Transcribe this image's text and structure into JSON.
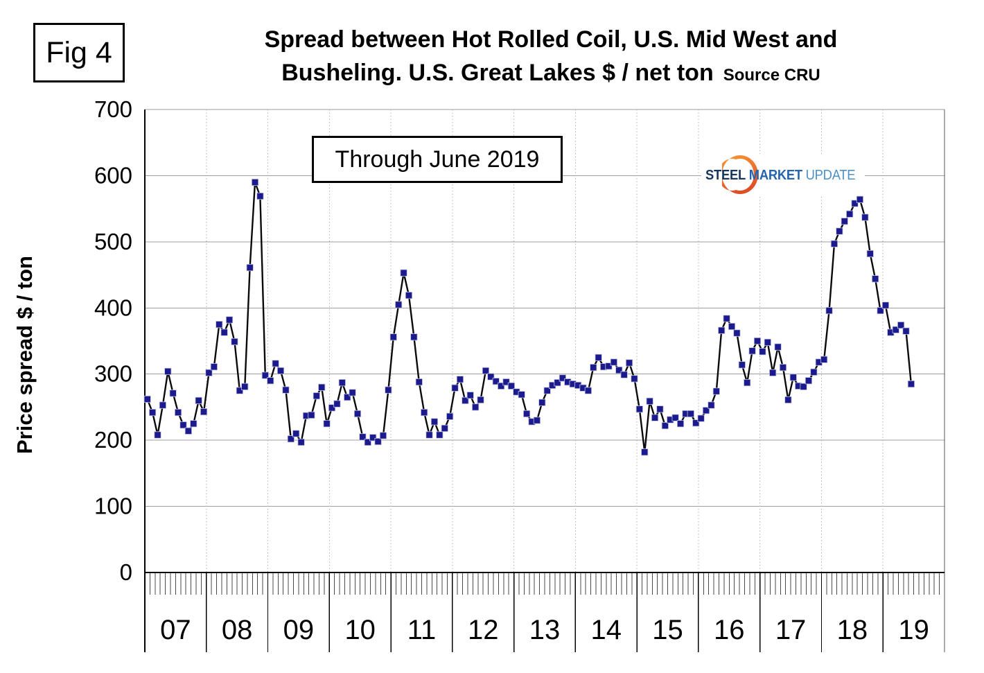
{
  "fig_label": "Fig 4",
  "title_line1": "Spread between Hot Rolled Coil, U.S. Mid West and",
  "title_line2": "Busheling. U.S. Great Lakes  $ / net ton",
  "source_label": "Source CRU",
  "annotation": "Through June 2019",
  "ylabel": "Price spread $ / ton",
  "logo": {
    "word1": "STEEL",
    "word2": "MARKET",
    "word3": "UPDATE",
    "crescent_color_top": "#f89b38",
    "crescent_color_bottom": "#e04e27"
  },
  "chart_data": {
    "type": "line",
    "title": "Spread between Hot Rolled Coil, U.S. Mid West and Busheling. U.S. Great Lakes $ / net ton",
    "source": "CRU",
    "xlabel": "",
    "ylabel": "Price spread $ / ton",
    "ylim": [
      0,
      700
    ],
    "ytick_interval": 100,
    "grid": "horizontal solid gray every 100, vertical dotted at year boundaries",
    "legend_position": "none",
    "x_unit": "monthly, Jan 2007 through Jun 2019",
    "line_color": "#0a0a0a",
    "marker": "square",
    "marker_color": "#1b1b8e",
    "series_name": "spread",
    "years": [
      {
        "label": "07",
        "year": 2007,
        "values": [
          262,
          242,
          208,
          253,
          304,
          271,
          242,
          223,
          214,
          225,
          260,
          243
        ]
      },
      {
        "label": "08",
        "year": 2008,
        "values": [
          302,
          311,
          375,
          363,
          382,
          349,
          275,
          281,
          461,
          590,
          569,
          298
        ]
      },
      {
        "label": "09",
        "year": 2009,
        "values": [
          290,
          316,
          305,
          276,
          202,
          210,
          197,
          237,
          238,
          267,
          280,
          225
        ]
      },
      {
        "label": "10",
        "year": 2010,
        "values": [
          249,
          255,
          287,
          265,
          272,
          240,
          205,
          197,
          204,
          198,
          207,
          276
        ]
      },
      {
        "label": "11",
        "year": 2011,
        "values": [
          356,
          405,
          453,
          419,
          356,
          288,
          242,
          208,
          228,
          208,
          218,
          236
        ]
      },
      {
        "label": "12",
        "year": 2012,
        "values": [
          279,
          292,
          260,
          268,
          250,
          261,
          305,
          296,
          289,
          282,
          288,
          282
        ]
      },
      {
        "label": "13",
        "year": 2013,
        "values": [
          273,
          269,
          240,
          228,
          230,
          257,
          275,
          283,
          287,
          294,
          288,
          285
        ]
      },
      {
        "label": "14",
        "year": 2014,
        "values": [
          283,
          279,
          275,
          310,
          325,
          311,
          312,
          318,
          306,
          299,
          317,
          293
        ]
      },
      {
        "label": "15",
        "year": 2015,
        "values": [
          247,
          182,
          259,
          234,
          247,
          222,
          231,
          234,
          225,
          240,
          240,
          226
        ]
      },
      {
        "label": "16",
        "year": 2016,
        "values": [
          233,
          245,
          253,
          274,
          366,
          384,
          372,
          362,
          314,
          287,
          335,
          350
        ]
      },
      {
        "label": "17",
        "year": 2017,
        "values": [
          334,
          348,
          302,
          341,
          310,
          261,
          295,
          282,
          281,
          290,
          303,
          318
        ]
      },
      {
        "label": "18",
        "year": 2018,
        "values": [
          322,
          396,
          497,
          516,
          531,
          542,
          558,
          564,
          537,
          482,
          444,
          396
        ]
      },
      {
        "label": "19",
        "year": 2019,
        "values": [
          404,
          363,
          367,
          374,
          365,
          285
        ]
      }
    ]
  }
}
